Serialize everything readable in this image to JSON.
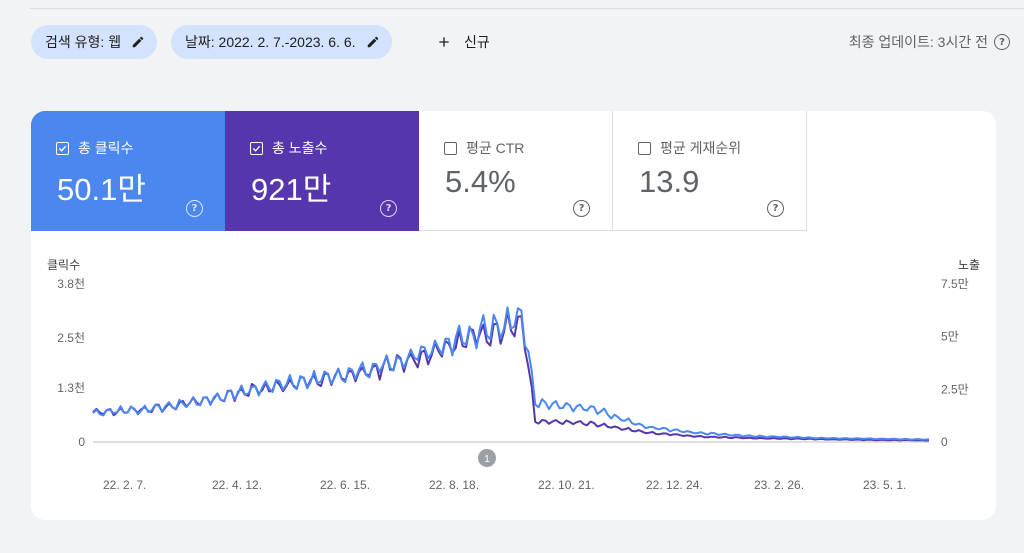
{
  "filters": {
    "search_type": "검색 유형: 웹",
    "date_range": "날짜: 2022. 2. 7.-2023. 6. 6.",
    "new_label": "신규"
  },
  "last_update": "최종 업데이트: 3시간 전",
  "metrics": [
    {
      "label": "총 클릭수",
      "value": "50.1만",
      "checked": true,
      "color": "#4b87ef"
    },
    {
      "label": "총 노출수",
      "value": "921만",
      "checked": true,
      "color": "#5636ad"
    },
    {
      "label": "평균 CTR",
      "value": "5.4%",
      "checked": false
    },
    {
      "label": "평균 게재순위",
      "value": "13.9",
      "checked": false
    }
  ],
  "chart_data": {
    "type": "line",
    "left_axis": {
      "label": "클릭수",
      "ticks": [
        "3.8천",
        "2.5천",
        "1.3천",
        "0"
      ],
      "values": [
        3800,
        2500,
        1300,
        0
      ]
    },
    "right_axis": {
      "label": "노출",
      "ticks": [
        "7.5만",
        "5만",
        "2.5만",
        "0"
      ],
      "values": [
        75000,
        50000,
        25000,
        0
      ]
    },
    "x_ticks": [
      "22. 2. 7.",
      "22. 4. 12.",
      "22. 6. 15.",
      "22. 8. 18.",
      "22. 10. 21.",
      "22. 12. 24.",
      "23. 2. 26.",
      "23. 5. 1."
    ],
    "annotation": "1",
    "series": [
      {
        "name": "총 클릭수",
        "color": "#4b87ef",
        "axis": "left",
        "x": [
          "2022-02-07",
          "2022-03-10",
          "2022-04-12",
          "2022-05-15",
          "2022-06-15",
          "2022-07-18",
          "2022-08-18",
          "2022-09-20",
          "2022-10-14",
          "2022-10-21",
          "2022-11-22",
          "2022-12-24",
          "2023-01-25",
          "2023-02-26",
          "2023-03-30",
          "2023-05-01",
          "2023-06-06"
        ],
        "values": [
          720,
          780,
          990,
          1300,
          1500,
          1750,
          2150,
          2650,
          3000,
          930,
          820,
          360,
          210,
          140,
          100,
          80,
          60
        ]
      },
      {
        "name": "총 노출수",
        "color": "#5636ad",
        "axis": "right",
        "x": [
          "2022-02-07",
          "2022-03-10",
          "2022-04-12",
          "2022-05-15",
          "2022-06-15",
          "2022-07-18",
          "2022-08-18",
          "2022-09-20",
          "2022-10-14",
          "2022-10-21",
          "2022-11-22",
          "2022-12-24",
          "2023-01-25",
          "2023-02-26",
          "2023-03-30",
          "2023-05-01",
          "2023-06-06"
        ],
        "values": [
          14000,
          15500,
          19500,
          25500,
          29000,
          33500,
          41000,
          51000,
          57000,
          10000,
          9000,
          4500,
          2500,
          1800,
          1400,
          1000,
          800
        ]
      }
    ]
  },
  "icons": {
    "edit": "pencil-icon",
    "add": "plus-icon",
    "help": "help-circle-icon",
    "check": "checkbox-icon"
  }
}
